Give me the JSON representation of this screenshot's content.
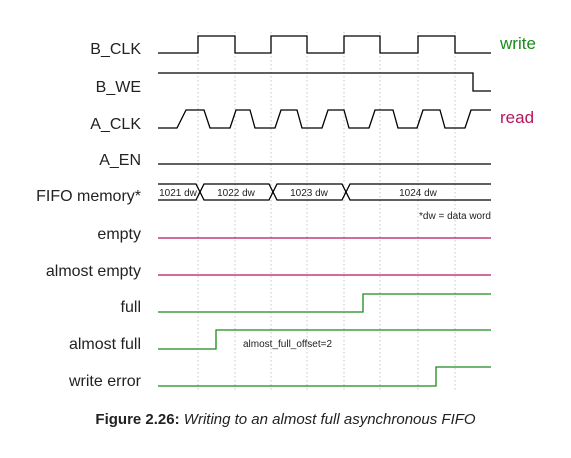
{
  "signals": {
    "b_clk": "B_CLK",
    "b_we": "B_WE",
    "a_clk": "A_CLK",
    "a_en": "A_EN",
    "fifo_memory": "FIFO memory*",
    "empty": "empty",
    "almost_empty": "almost empty",
    "full": "full",
    "almost_full": "almost full",
    "write_error": "write error"
  },
  "side_labels": {
    "write": "write",
    "read": "read"
  },
  "fifo_segments": [
    "1021 dw",
    "1022 dw",
    "1023 dw",
    "1024 dw"
  ],
  "notes": {
    "dw_definition": "*dw = data word",
    "almost_full_offset": "almost_full_offset=2"
  },
  "caption": {
    "number": "Figure 2.26:",
    "text": "Writing to an almost full asynchronous FIFO"
  },
  "colors": {
    "clock_group": "#000000",
    "read_group": "#b5175e",
    "write_group": "#1a8a1a",
    "grid": "#c4c4c4"
  }
}
